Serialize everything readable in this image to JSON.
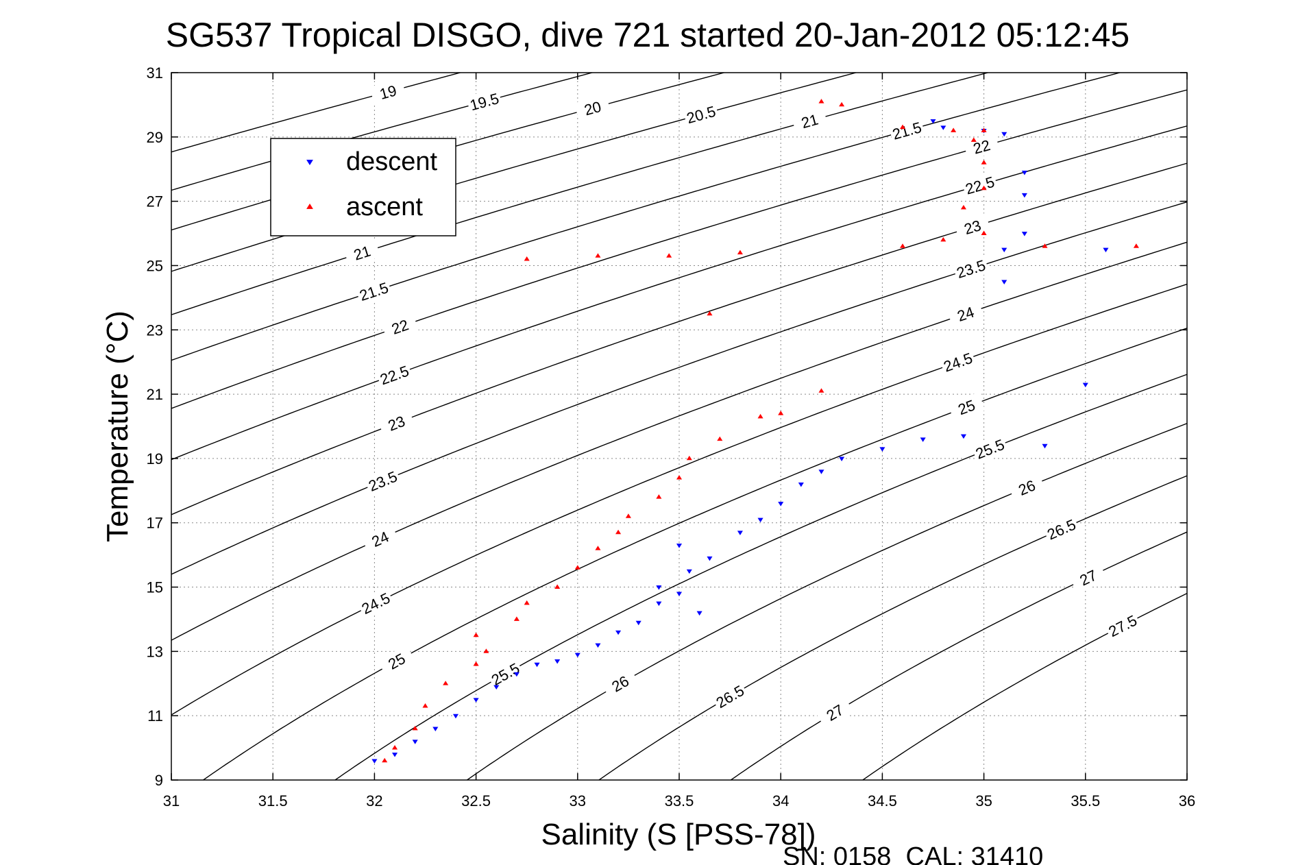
{
  "chart_data": {
    "type": "scatter",
    "title": "SG537 Tropical DISGO, dive 721 started 20-Jan-2012 05:12:45",
    "xlabel": "Salinity (S [PSS-78])",
    "ylabel": "Temperature (°C)",
    "footer": "SN: 0158  CAL: 31410",
    "xlim": [
      31,
      36
    ],
    "ylim": [
      9,
      31
    ],
    "x_ticks": [
      "31",
      "31.5",
      "32",
      "32.5",
      "33",
      "33.5",
      "34",
      "34.5",
      "35",
      "35.5",
      "36"
    ],
    "y_ticks": [
      "9",
      "11",
      "13",
      "15",
      "17",
      "19",
      "21",
      "23",
      "25",
      "27",
      "29",
      "31"
    ],
    "grid": true,
    "legend_position": "top-left",
    "density_contours": {
      "color": "#000000",
      "levels": [
        "19",
        "19.5",
        "20",
        "20.5",
        "21",
        "21.5",
        "22",
        "22.5",
        "23",
        "23.5",
        "24",
        "24.5",
        "25",
        "25.5",
        "26",
        "26.5",
        "27",
        "27.5"
      ]
    },
    "series": [
      {
        "name": "descent",
        "marker": "triangle-down",
        "color": "#0000ff",
        "points": [
          [
            32.0,
            9.6
          ],
          [
            32.1,
            9.8
          ],
          [
            32.2,
            10.2
          ],
          [
            32.3,
            10.6
          ],
          [
            32.4,
            11.0
          ],
          [
            32.5,
            11.5
          ],
          [
            32.6,
            11.9
          ],
          [
            32.7,
            12.3
          ],
          [
            32.8,
            12.6
          ],
          [
            32.9,
            12.7
          ],
          [
            33.0,
            12.9
          ],
          [
            33.1,
            13.2
          ],
          [
            33.2,
            13.6
          ],
          [
            33.3,
            13.9
          ],
          [
            33.4,
            14.5
          ],
          [
            33.5,
            14.8
          ],
          [
            33.6,
            14.2
          ],
          [
            33.4,
            15.0
          ],
          [
            33.55,
            15.5
          ],
          [
            33.65,
            15.9
          ],
          [
            33.5,
            16.3
          ],
          [
            33.8,
            16.7
          ],
          [
            33.9,
            17.1
          ],
          [
            34.0,
            17.6
          ],
          [
            34.1,
            18.2
          ],
          [
            34.2,
            18.6
          ],
          [
            34.3,
            19.0
          ],
          [
            34.5,
            19.3
          ],
          [
            34.7,
            19.6
          ],
          [
            34.9,
            19.7
          ],
          [
            35.3,
            19.4
          ],
          [
            35.5,
            21.3
          ],
          [
            35.1,
            24.5
          ],
          [
            35.1,
            25.5
          ],
          [
            35.2,
            26.0
          ],
          [
            35.2,
            27.2
          ],
          [
            35.2,
            27.9
          ],
          [
            35.1,
            29.1
          ],
          [
            35.0,
            29.2
          ],
          [
            34.8,
            29.3
          ],
          [
            34.75,
            29.5
          ],
          [
            35.6,
            25.5
          ]
        ]
      },
      {
        "name": "ascent",
        "marker": "triangle-up",
        "color": "#ff0000",
        "points": [
          [
            32.05,
            9.6
          ],
          [
            32.1,
            10.0
          ],
          [
            32.2,
            10.6
          ],
          [
            32.25,
            11.3
          ],
          [
            32.35,
            12.0
          ],
          [
            32.5,
            12.6
          ],
          [
            32.55,
            13.0
          ],
          [
            32.5,
            13.5
          ],
          [
            32.7,
            14.0
          ],
          [
            32.75,
            14.5
          ],
          [
            32.9,
            15.0
          ],
          [
            33.0,
            15.6
          ],
          [
            33.1,
            16.2
          ],
          [
            33.2,
            16.7
          ],
          [
            33.25,
            17.2
          ],
          [
            33.4,
            17.8
          ],
          [
            33.5,
            18.4
          ],
          [
            33.55,
            19.0
          ],
          [
            33.7,
            19.6
          ],
          [
            33.9,
            20.3
          ],
          [
            34.0,
            20.4
          ],
          [
            34.2,
            21.1
          ],
          [
            33.65,
            23.5
          ],
          [
            33.8,
            25.4
          ],
          [
            33.45,
            25.3
          ],
          [
            33.1,
            25.3
          ],
          [
            32.75,
            25.2
          ],
          [
            34.6,
            25.6
          ],
          [
            34.8,
            25.8
          ],
          [
            35.0,
            26.0
          ],
          [
            34.9,
            26.8
          ],
          [
            35.0,
            27.4
          ],
          [
            35.0,
            28.2
          ],
          [
            34.95,
            28.9
          ],
          [
            34.85,
            29.2
          ],
          [
            34.6,
            29.3
          ],
          [
            35.0,
            29.2
          ],
          [
            34.3,
            30.0
          ],
          [
            34.2,
            30.1
          ],
          [
            35.75,
            25.6
          ],
          [
            35.3,
            25.6
          ]
        ]
      }
    ]
  }
}
